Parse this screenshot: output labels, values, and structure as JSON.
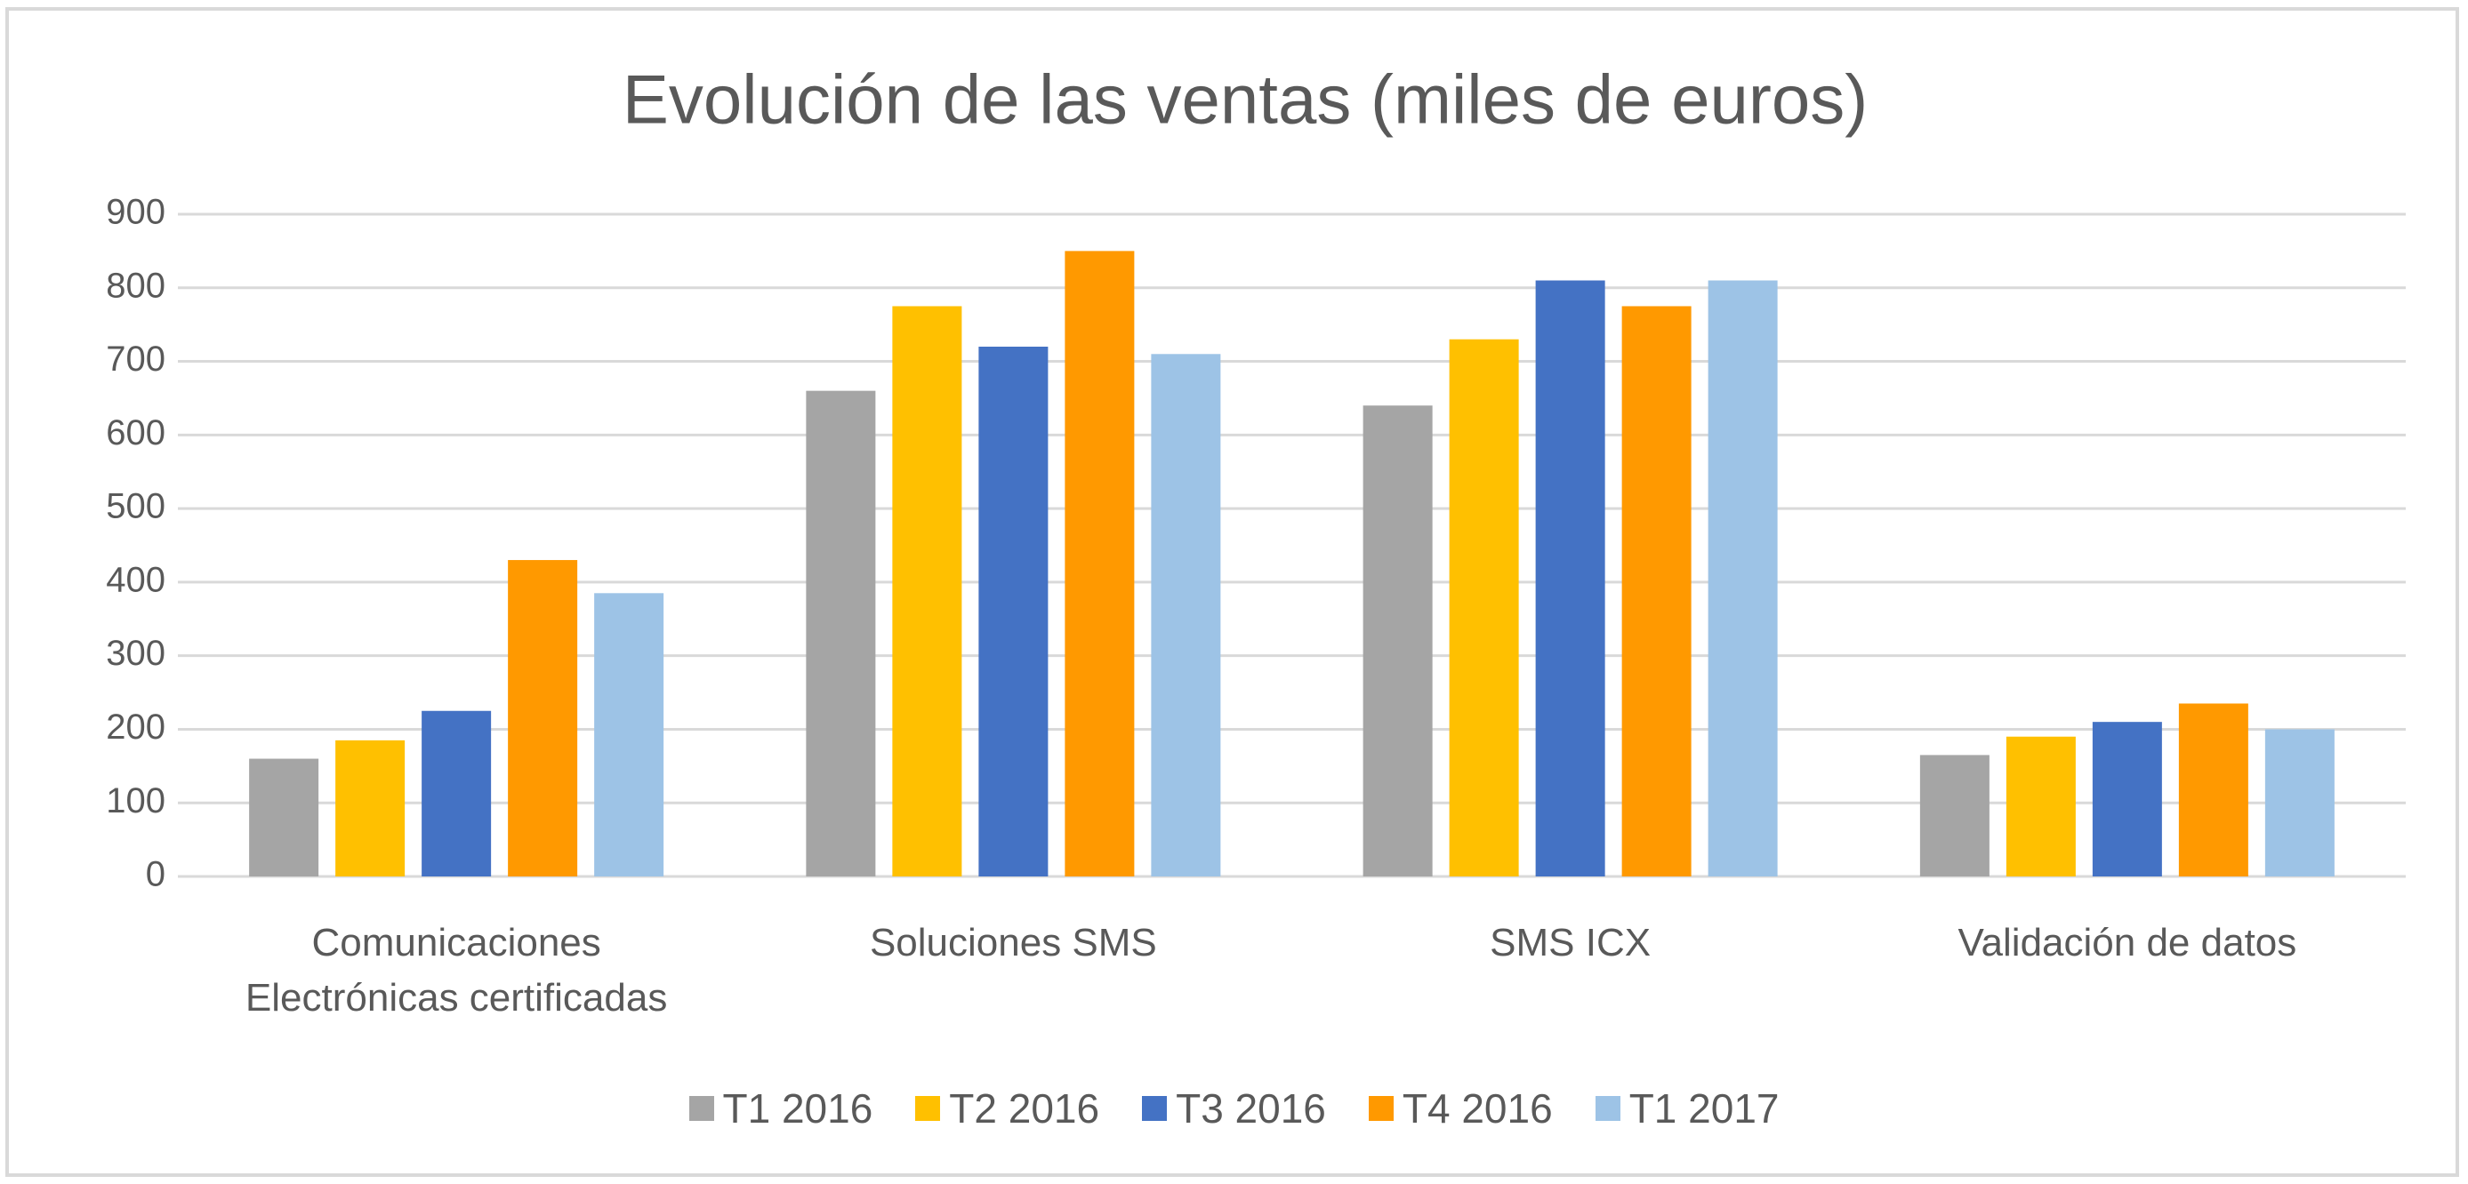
{
  "chart_data": {
    "type": "bar",
    "title": "Evolución de las ventas (miles de euros)",
    "categories": [
      "Comunicaciones Electrónicas certificadas",
      "Soluciones SMS",
      "SMS ICX",
      "Validación de datos"
    ],
    "series": [
      {
        "name": "T1 2016",
        "color": "#a5a5a5",
        "values": [
          160,
          660,
          640,
          165
        ]
      },
      {
        "name": "T2 2016",
        "color": "#ffc000",
        "values": [
          185,
          775,
          730,
          190
        ]
      },
      {
        "name": "T3 2016",
        "color": "#4472c4",
        "values": [
          225,
          720,
          810,
          210
        ]
      },
      {
        "name": "T4 2016",
        "color": "#ff9900",
        "values": [
          430,
          850,
          775,
          235
        ]
      },
      {
        "name": "T1 2017",
        "color": "#9dc3e6",
        "values": [
          385,
          710,
          810,
          200
        ]
      }
    ],
    "ylim": [
      0,
      900
    ],
    "yticks": [
      0,
      100,
      200,
      300,
      400,
      500,
      600,
      700,
      800,
      900
    ],
    "grid": true,
    "legend": "bottom"
  }
}
